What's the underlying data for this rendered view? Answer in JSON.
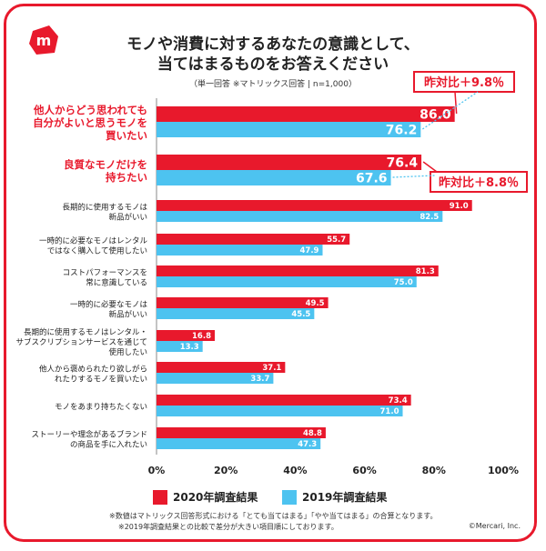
{
  "title_line1": "モノや消費に対するあなたの意識として、",
  "title_line2": "当てはまるものをお答えください",
  "subtitle": "（単一回答 ※マトリックス回答 | n=1,000）",
  "legend": {
    "series2020": "2020年調査結果",
    "series2019": "2019年調査結果"
  },
  "callouts": [
    {
      "text": "昨対比＋9.8％"
    },
    {
      "text": "昨対比＋8.8％"
    }
  ],
  "notes": [
    "※数値はマトリックス回答形式における「とても当てはまる」「やや当てはまる」の合算となります。",
    "※2019年調査結果との比較で差分が大きい項目順にしております。"
  ],
  "copyright": "©Mercari, Inc.",
  "colors": {
    "red": "#e8192c",
    "blue": "#4dc3f0"
  },
  "chart_data": {
    "type": "bar",
    "orientation": "horizontal",
    "xlim": [
      0,
      100
    ],
    "x_ticks": [
      "0%",
      "20%",
      "40%",
      "60%",
      "80%",
      "100%"
    ],
    "categories": [
      {
        "lines": [
          "他人からどう思われても",
          "自分がよいと思うモノを",
          "買いたい"
        ],
        "highlight": true
      },
      {
        "lines": [
          "良質なモノだけを",
          "持ちたい"
        ],
        "highlight": true
      },
      {
        "lines": [
          "長期的に使用するモノは",
          "新品がいい"
        ],
        "highlight": false
      },
      {
        "lines": [
          "一時的に必要なモノはレンタル",
          "ではなく購入して使用したい"
        ],
        "highlight": false
      },
      {
        "lines": [
          "コストパフォーマンスを",
          "常に意識している"
        ],
        "highlight": false
      },
      {
        "lines": [
          "一時的に必要なモノは",
          "新品がいい"
        ],
        "highlight": false
      },
      {
        "lines": [
          "長期的に使用するモノはレンタル・",
          "サブスクリプションサービスを通じて",
          "使用したい"
        ],
        "highlight": false
      },
      {
        "lines": [
          "他人から褒められたり欲しがら",
          "れたりするモノを買いたい"
        ],
        "highlight": false
      },
      {
        "lines": [
          "モノをあまり持ちたくない"
        ],
        "highlight": false
      },
      {
        "lines": [
          "ストーリーや理念があるブランド",
          "の商品を手に入れたい"
        ],
        "highlight": false
      }
    ],
    "series": [
      {
        "name": "2020年調査結果",
        "color": "#e8192c",
        "values": [
          86.0,
          76.4,
          91.0,
          55.7,
          81.3,
          49.5,
          16.8,
          37.1,
          73.4,
          48.8
        ]
      },
      {
        "name": "2019年調査結果",
        "color": "#4dc3f0",
        "values": [
          76.2,
          67.6,
          82.5,
          47.9,
          75.0,
          45.5,
          13.3,
          33.7,
          71.0,
          47.3
        ]
      }
    ]
  }
}
